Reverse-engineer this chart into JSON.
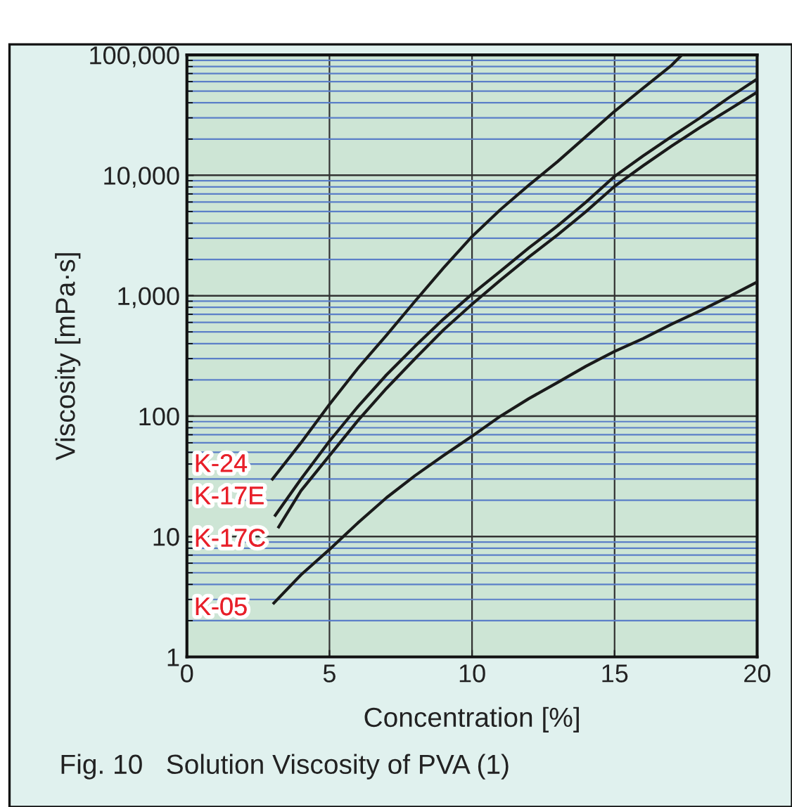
{
  "chart_data": {
    "type": "line",
    "xlabel": "Concentration [%]",
    "ylabel": "Viscosity [mPa·s]",
    "annotations": [
      "Fig. 10   Solution Viscosity of PVA (1)"
    ],
    "log": "y",
    "grid": true,
    "legend": false,
    "marker": "none",
    "line_style": "solid",
    "xlim": [
      0,
      20
    ],
    "xticks": [
      0,
      5,
      10,
      15,
      20
    ],
    "ylim": [
      1,
      100000
    ],
    "yticks": [
      1,
      10,
      100,
      {
        "value": 1000,
        "label": "1,000"
      },
      {
        "value": 10000,
        "label": "10,000"
      },
      {
        "value": 100000,
        "label": "100,000"
      },
      {
        "value": 2,
        "label": null
      },
      {
        "value": 3,
        "label": null
      },
      {
        "value": 4,
        "label": null
      },
      {
        "value": 5,
        "label": null
      },
      {
        "value": 6,
        "label": null
      },
      {
        "value": 7,
        "label": null
      },
      {
        "value": 8,
        "label": null
      },
      {
        "value": 9,
        "label": null
      },
      {
        "value": 20,
        "label": null
      },
      {
        "value": 30,
        "label": null
      },
      {
        "value": 40,
        "label": null
      },
      {
        "value": 50,
        "label": null
      },
      {
        "value": 60,
        "label": null
      },
      {
        "value": 70,
        "label": null
      },
      {
        "value": 80,
        "label": null
      },
      {
        "value": 90,
        "label": null
      },
      {
        "value": 200,
        "label": null
      },
      {
        "value": 300,
        "label": null
      },
      {
        "value": 400,
        "label": null
      },
      {
        "value": 500,
        "label": null
      },
      {
        "value": 600,
        "label": null
      },
      {
        "value": 700,
        "label": null
      },
      {
        "value": 800,
        "label": null
      },
      {
        "value": 900,
        "label": null
      },
      {
        "value": 2000,
        "label": null
      },
      {
        "value": 3000,
        "label": null
      },
      {
        "value": 4000,
        "label": null
      },
      {
        "value": 5000,
        "label": null
      },
      {
        "value": 6000,
        "label": null
      },
      {
        "value": 7000,
        "label": null
      },
      {
        "value": 8000,
        "label": null
      },
      {
        "value": 9000,
        "label": null
      },
      {
        "value": 20000,
        "label": null
      },
      {
        "value": 30000,
        "label": null
      },
      {
        "value": 40000,
        "label": null
      },
      {
        "value": 50000,
        "label": null
      },
      {
        "value": 60000,
        "label": null
      },
      {
        "value": 70000,
        "label": null
      },
      {
        "value": 80000,
        "label": null
      },
      {
        "value": 90000,
        "label": null
      }
    ],
    "series": [
      {
        "name": "K-24",
        "color": "#1a1a1a",
        "x": [
          3,
          4,
          5,
          6,
          7,
          8,
          9,
          10,
          11,
          12,
          13,
          14,
          15,
          16,
          17,
          17.36
        ],
        "values": [
          30,
          60,
          125,
          250,
          470,
          900,
          1700,
          3100,
          5200,
          8300,
          13000,
          21000,
          34000,
          53000,
          82000,
          100000
        ]
      },
      {
        "name": "K-17E",
        "color": "#1a1a1a",
        "x": [
          3.1,
          4,
          5,
          6,
          7,
          8,
          9,
          10,
          11,
          12,
          13,
          14,
          15,
          16,
          17,
          18,
          19,
          20
        ],
        "values": [
          15,
          30,
          62,
          120,
          220,
          380,
          640,
          1030,
          1600,
          2500,
          3800,
          6000,
          9800,
          14500,
          21000,
          30000,
          44000,
          63000
        ]
      },
      {
        "name": "K-17C",
        "color": "#1a1a1a",
        "x": [
          3.22,
          4,
          5,
          6,
          7,
          8,
          9,
          10,
          11,
          12,
          13,
          14,
          15,
          16,
          17,
          18,
          19,
          20
        ],
        "values": [
          12,
          24,
          47,
          92,
          170,
          300,
          520,
          850,
          1350,
          2100,
          3200,
          5000,
          8100,
          12000,
          17500,
          25000,
          35000,
          49000
        ]
      },
      {
        "name": "K-05",
        "color": "#1a1a1a",
        "x": [
          3.05,
          4,
          5,
          6,
          7,
          8,
          9,
          10,
          11,
          12,
          13,
          14,
          15,
          16,
          17,
          18,
          19,
          20
        ],
        "values": [
          2.8,
          4.8,
          7.8,
          13,
          21,
          32,
          47,
          68,
          100,
          140,
          190,
          260,
          345,
          440,
          580,
          750,
          980,
          1300
        ]
      }
    ]
  }
}
